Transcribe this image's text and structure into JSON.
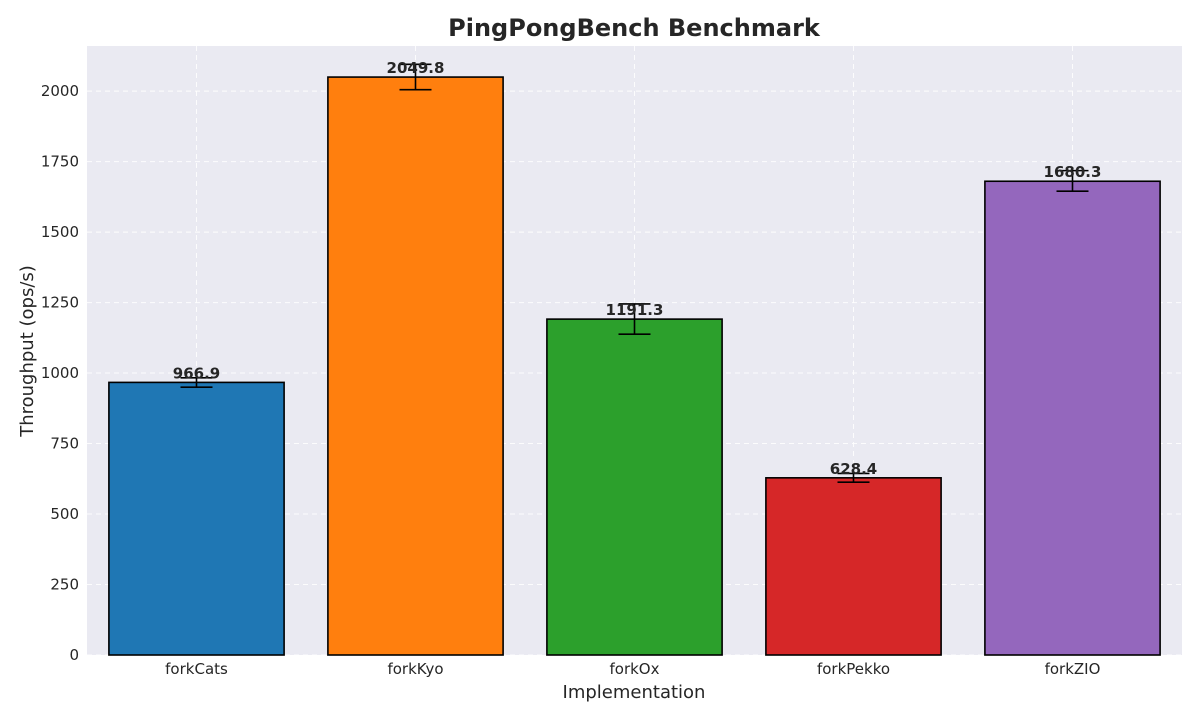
{
  "chart_data": {
    "type": "bar",
    "title": "PingPongBench Benchmark",
    "xlabel": "Implementation",
    "ylabel": "Throughput (ops/s)",
    "categories": [
      "forkCats",
      "forkKyo",
      "forkOx",
      "forkPekko",
      "forkZIO"
    ],
    "values": [
      966.9,
      2049.8,
      1191.3,
      628.4,
      1680.3
    ],
    "value_labels": [
      "966.9",
      "2049.8",
      "1191.3",
      "628.4",
      "1680.3"
    ],
    "error_low": [
      950,
      2005,
      1138,
      613,
      1645
    ],
    "error_high": [
      983,
      2095,
      1245,
      644,
      1718
    ],
    "colors": [
      "#1f77b4",
      "#ff7f0e",
      "#2ca02c",
      "#d62728",
      "#9467bd"
    ],
    "ylim": [
      0,
      2160
    ],
    "yticks": [
      0,
      250,
      500,
      750,
      1000,
      1250,
      1500,
      1750,
      2000
    ],
    "ytick_labels": [
      "0",
      "250",
      "500",
      "750",
      "1000",
      "1250",
      "1500",
      "1750",
      "2000"
    ],
    "grid": true,
    "legend": "none"
  }
}
